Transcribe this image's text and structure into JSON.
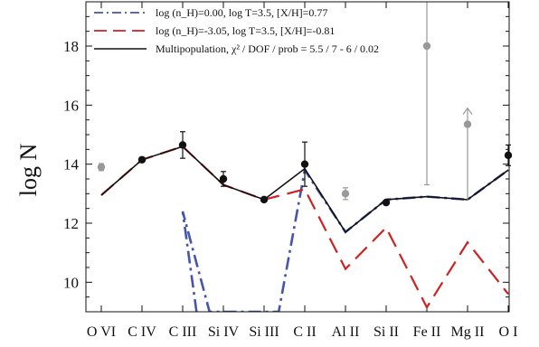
{
  "chart_data": {
    "type": "line",
    "ylabel": "log N",
    "ylim": [
      9.0,
      19.5
    ],
    "yticks": [
      10,
      12,
      14,
      16,
      18
    ],
    "categories": [
      "O VI",
      "C IV",
      "C III",
      "Si IV",
      "Si III",
      "C II",
      "Al II",
      "Si II",
      "Fe II",
      "Mg II",
      "O I"
    ],
    "legend_location": "top-left",
    "series": [
      {
        "name": "log (n_H)=0.00, log T=3.5, [X/H]=0.77",
        "style": "dash-dot",
        "color": "#4455aa",
        "values": [
          null,
          null,
          12.4,
          null,
          null,
          13.8,
          11.7,
          12.8,
          12.9,
          12.8,
          13.8
        ],
        "segments": [
          [
            2.34,
            9.0
          ],
          [
            2.0,
            12.4
          ],
          [
            2.66,
            9.0
          ],
          [
            4.36,
            9.0
          ],
          [
            5.0,
            13.8
          ],
          [
            6.0,
            11.7
          ],
          [
            7.0,
            12.8
          ],
          [
            8.0,
            12.9
          ],
          [
            9.0,
            12.8
          ],
          [
            10.0,
            13.8
          ]
        ]
      },
      {
        "name": "log (n_H)=-3.05, log T=3.5, [X/H]=-0.81",
        "style": "dashed",
        "color": "#cc2222",
        "values": [
          12.95,
          14.15,
          14.6,
          13.3,
          12.8,
          13.15,
          10.45,
          11.85,
          9.15,
          11.35,
          9.6
        ]
      },
      {
        "name": "Multipopulation, χ² / DOF / prob =  5.5 /  7 - 6 /  0.02",
        "style": "solid",
        "color": "#111111",
        "values": [
          12.95,
          14.15,
          14.6,
          13.3,
          12.8,
          13.85,
          11.7,
          12.8,
          12.9,
          12.8,
          13.8
        ]
      }
    ],
    "observations": [
      {
        "category": "O VI",
        "value": 13.9,
        "err": 0.12,
        "color": "#999999",
        "limit": "none"
      },
      {
        "category": "C IV",
        "value": 14.15,
        "err": 0.08,
        "color": "#111111",
        "limit": "none"
      },
      {
        "category": "C III",
        "value": 14.65,
        "err": 0.45,
        "color": "#111111",
        "limit": "none"
      },
      {
        "category": "Si IV",
        "value": 13.5,
        "err": 0.25,
        "color": "#111111",
        "limit": "none"
      },
      {
        "category": "Si III",
        "value": 12.8,
        "err": 0.05,
        "color": "#111111",
        "limit": "none"
      },
      {
        "category": "C II",
        "value": 14.0,
        "err": 0.75,
        "color": "#111111",
        "limit": "none"
      },
      {
        "category": "Al II",
        "value": 13.0,
        "err": 0.2,
        "color": "#999999",
        "limit": "none"
      },
      {
        "category": "Si II",
        "value": 12.7,
        "err": 0.05,
        "color": "#111111",
        "limit": "none"
      },
      {
        "category": "Fe II",
        "value": 18.0,
        "errlow": 13.3,
        "errhigh": 19.5,
        "color": "#999999",
        "limit": "wide"
      },
      {
        "category": "Mg II",
        "value": 15.35,
        "errlow": 12.8,
        "errhigh": 15.9,
        "color": "#999999",
        "limit": "lower"
      },
      {
        "category": "O I",
        "value": 14.3,
        "err": 0.35,
        "color": "#111111",
        "limit": "none"
      }
    ]
  }
}
